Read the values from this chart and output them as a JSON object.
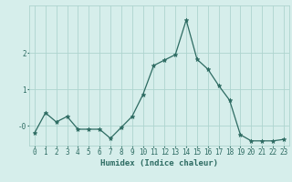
{
  "x": [
    0,
    1,
    2,
    3,
    4,
    5,
    6,
    7,
    8,
    9,
    10,
    11,
    12,
    13,
    14,
    15,
    16,
    17,
    18,
    19,
    20,
    21,
    22,
    23
  ],
  "y": [
    -0.2,
    0.35,
    0.1,
    0.25,
    -0.1,
    -0.1,
    -0.1,
    -0.35,
    -0.05,
    0.25,
    0.85,
    1.65,
    1.8,
    1.95,
    2.9,
    1.82,
    1.55,
    1.1,
    0.7,
    -0.25,
    -0.42,
    -0.42,
    -0.42,
    -0.38
  ],
  "xlabel": "Humidex (Indice chaleur)",
  "xlim": [
    -0.5,
    23.5
  ],
  "ylim": [
    -0.55,
    3.3
  ],
  "bg_color": "#d6eeeb",
  "grid_color": "#aed4cf",
  "line_color": "#2d6b62",
  "marker_color": "#2d6b62",
  "xlabel_fontsize": 6.5,
  "tick_fontsize": 5.5
}
